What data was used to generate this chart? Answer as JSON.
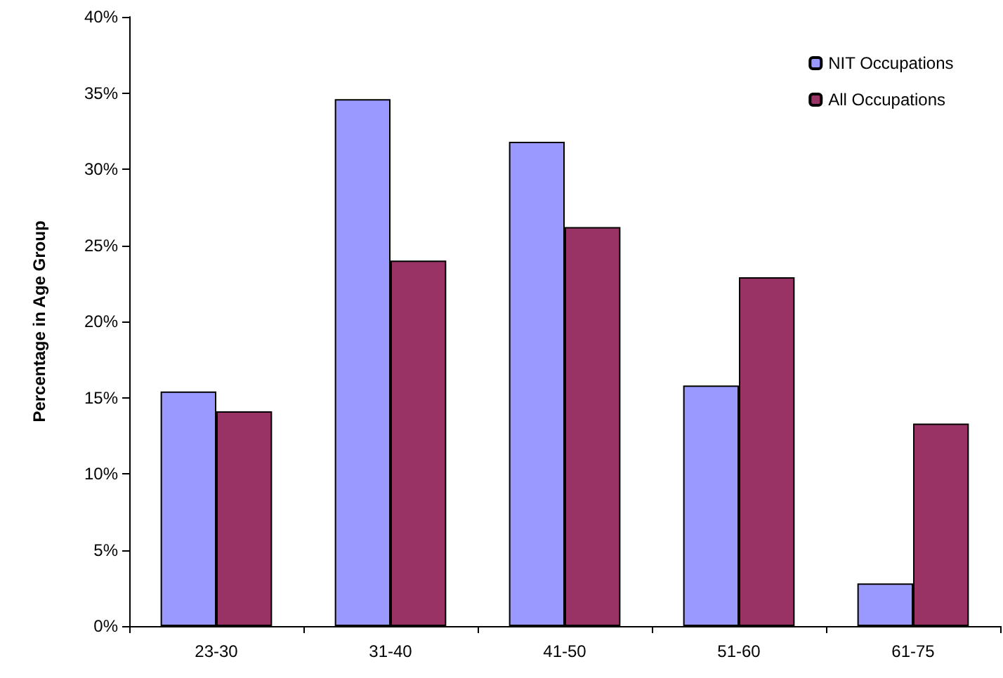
{
  "chart_data": {
    "type": "bar",
    "ylabel": "Percentage in Age Group",
    "categories": [
      "23-30",
      "31-40",
      "41-50",
      "51-60",
      "61-75"
    ],
    "series": [
      {
        "name": "NIT Occupations",
        "color": "#9999ff",
        "values": [
          15.4,
          34.6,
          31.8,
          15.8,
          2.8
        ]
      },
      {
        "name": "All Occupations",
        "color": "#993366",
        "values": [
          14.1,
          24.0,
          26.2,
          22.9,
          13.3
        ]
      }
    ],
    "ylim": [
      0,
      40
    ],
    "yticks": [
      {
        "value": 0,
        "label": "0%"
      },
      {
        "value": 5,
        "label": "5%"
      },
      {
        "value": 10,
        "label": "10%"
      },
      {
        "value": 15,
        "label": "15%"
      },
      {
        "value": 20,
        "label": "20%"
      },
      {
        "value": 25,
        "label": "25%"
      },
      {
        "value": 30,
        "label": "30%"
      },
      {
        "value": 35,
        "label": "35%"
      },
      {
        "value": 40,
        "label": "40%"
      }
    ],
    "grid": false,
    "legend": "top right"
  }
}
